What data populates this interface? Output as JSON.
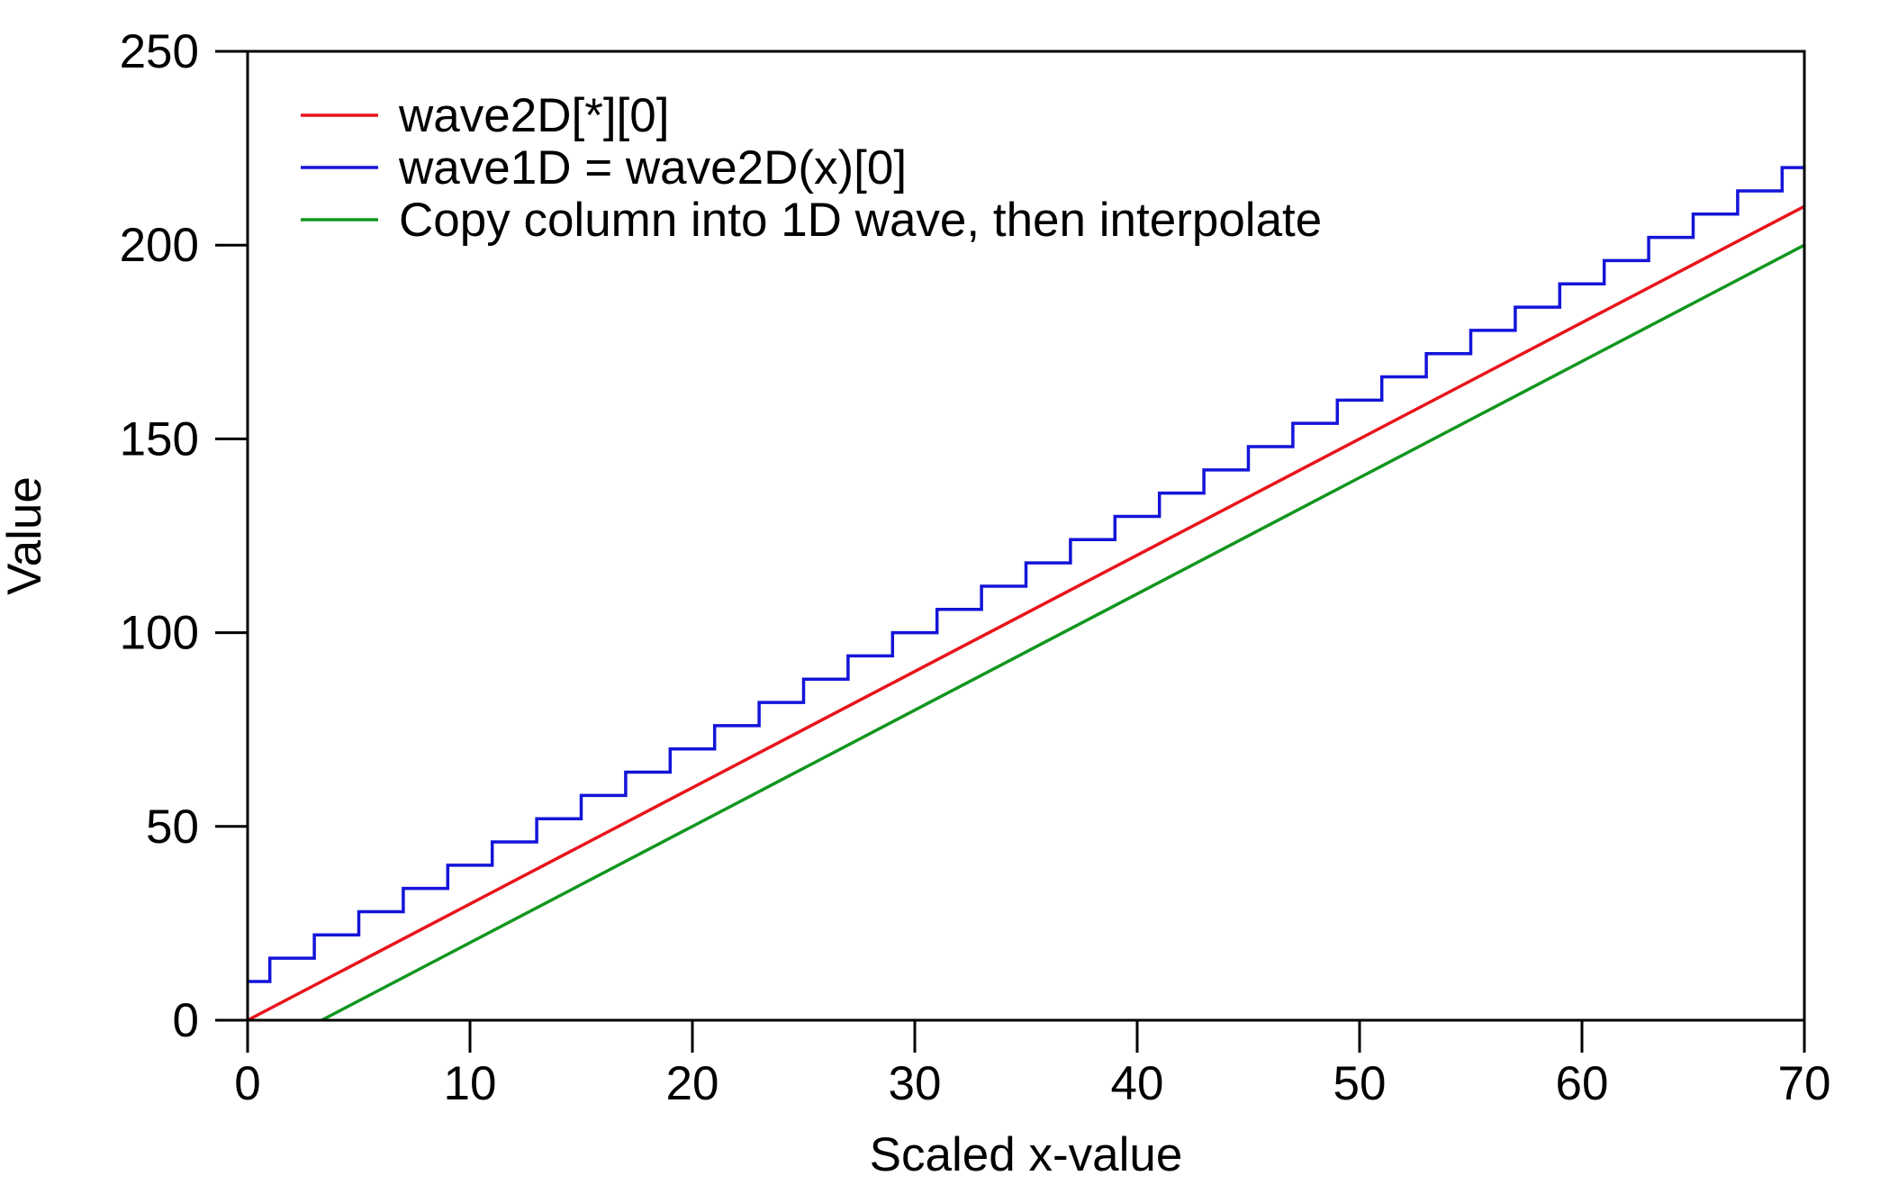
{
  "chart_data": {
    "type": "line",
    "title": "",
    "xlabel": "Scaled x-value",
    "ylabel": "Value",
    "xlim": [
      0,
      70
    ],
    "ylim": [
      0,
      250
    ],
    "xticks": [
      0,
      10,
      20,
      30,
      40,
      50,
      60,
      70
    ],
    "yticks": [
      0,
      50,
      100,
      150,
      200,
      250
    ],
    "grid": false,
    "legend_position": "top-left",
    "series": [
      {
        "name": "wave2D[*][0]",
        "color": "#e8141b",
        "style": "line",
        "x": [
          0,
          70
        ],
        "y": [
          0,
          210
        ]
      },
      {
        "name": "wave1D = wave2D(x)[0]",
        "color": "#1414d9",
        "style": "step",
        "x": [
          0,
          1,
          3,
          5,
          7,
          9,
          11,
          13,
          15,
          17,
          19,
          21,
          23,
          25,
          27,
          29,
          31,
          33,
          35,
          37,
          39,
          41,
          43,
          45,
          47,
          49,
          51,
          53,
          55,
          57,
          59,
          61,
          63,
          65,
          67,
          69,
          70
        ],
        "y": [
          10,
          16,
          22,
          28,
          34,
          40,
          46,
          52,
          58,
          64,
          70,
          76,
          82,
          88,
          94,
          100,
          106,
          112,
          118,
          124,
          130,
          136,
          142,
          148,
          154,
          160,
          166,
          172,
          178,
          184,
          190,
          196,
          202,
          208,
          214,
          220,
          220
        ]
      },
      {
        "name": "Copy column into 1D wave, then interpolate",
        "color": "#12961f",
        "style": "line",
        "x": [
          3.33,
          70
        ],
        "y": [
          0,
          200
        ]
      }
    ]
  }
}
